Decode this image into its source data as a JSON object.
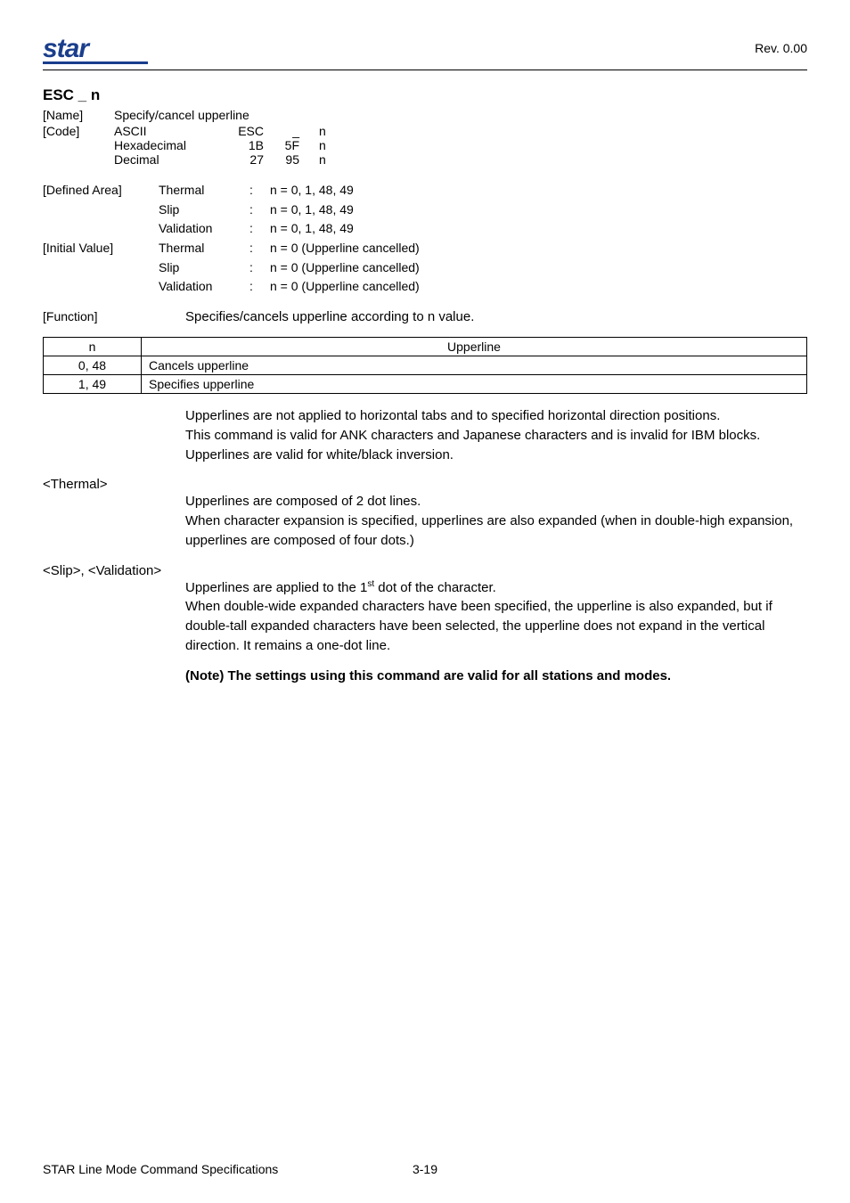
{
  "header": {
    "logo_text": "star",
    "logo_color": "#1a3e8c",
    "revision": "Rev. 0.00"
  },
  "command": {
    "title": "ESC _ n",
    "name_label": "[Name]",
    "name_value": "Specify/cancel upperline",
    "code_label": "[Code]",
    "code_rows": [
      {
        "format": "ASCII",
        "c1": "ESC",
        "c2": "_",
        "c3": "n"
      },
      {
        "format": "Hexadecimal",
        "c1": "1B",
        "c2": "5F",
        "c3": "n"
      },
      {
        "format": "Decimal",
        "c1": "27",
        "c2": "95",
        "c3": "n"
      }
    ],
    "defined_area_label": "[Defined Area]",
    "initial_value_label": "[Initial Value]",
    "def_rows": [
      {
        "target": "Thermal",
        "value": "n = 0, 1, 48, 49"
      },
      {
        "target": "Slip",
        "value": "n = 0, 1, 48, 49"
      },
      {
        "target": "Validation",
        "value": "n = 0, 1, 48, 49"
      }
    ],
    "init_rows": [
      {
        "target": "Thermal",
        "value": "n = 0 (Upperline cancelled)"
      },
      {
        "target": "Slip",
        "value": "n = 0 (Upperline cancelled)"
      },
      {
        "target": "Validation",
        "value": "n = 0 (Upperline cancelled)"
      }
    ],
    "function_label": "[Function]",
    "function_text": "Specifies/cancels upperline according to n value."
  },
  "upp_table": {
    "columns": {
      "n": "n",
      "desc": "Upperline"
    },
    "rows": [
      {
        "n": "0, 48",
        "desc": "Cancels upperline"
      },
      {
        "n": "1, 49",
        "desc": "Specifies upperline"
      }
    ]
  },
  "paragraphs": {
    "p1a": "Upperlines are not applied to horizontal tabs and to specified horizontal direction positions.",
    "p1b": "This command is valid for ANK characters and Japanese characters and is invalid for IBM blocks.",
    "p1c": "Upperlines are valid for white/black inversion.",
    "thermal_head": "<Thermal>",
    "thermal_a": "Upperlines are composed of 2 dot lines.",
    "thermal_b": "When character expansion is specified, upperlines are also expanded (when in double-high expansion, upperlines are composed of four dots.)",
    "slip_head": "<Slip>, <Validation>",
    "slip_a_pre": "Upperlines are applied to the 1",
    "slip_a_sup": "st",
    "slip_a_post": " dot of the character.",
    "slip_b": "When double-wide expanded characters have been specified, the upperline is also expanded, but if double-tall expanded characters have been selected, the upperline does not expand in the vertical direction.  It remains a one-dot line.",
    "note": "(Note) The settings using this command are valid for all stations and modes."
  },
  "footer": {
    "title": "STAR Line Mode Command Specifications",
    "page": "3-19"
  }
}
